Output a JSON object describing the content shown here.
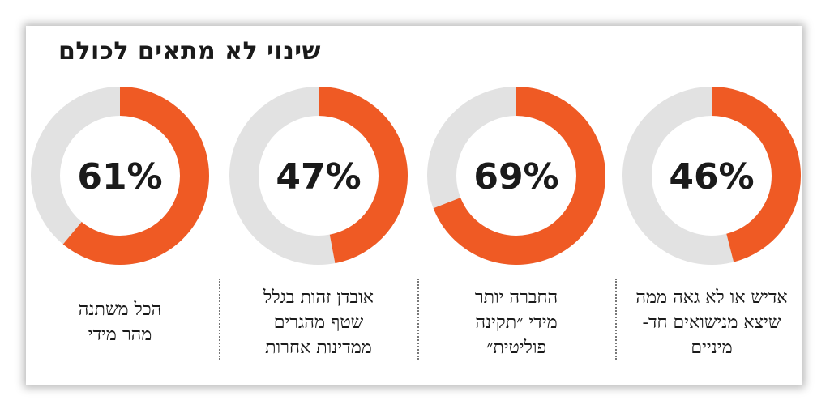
{
  "title": "שינוי לא מתאים לכולם",
  "colors": {
    "accent": "#ef5a24",
    "track": "#e2e2e2",
    "text": "#1a1a1a"
  },
  "chart_data": {
    "type": "pie",
    "title": "שינוי לא מתאים לכולם",
    "unit": "%",
    "items": [
      {
        "value": 61,
        "label": "61%",
        "caption": "הכל משתנה\nמהר מידי"
      },
      {
        "value": 47,
        "label": "47%",
        "caption": "אובדן זהות בגלל\nשטף מהגרים\nממדינות אחרות"
      },
      {
        "value": 69,
        "label": "69%",
        "caption": "החברה יותר\nמידי ״תקינה\nפוליטית״"
      },
      {
        "value": 46,
        "label": "46%",
        "caption": "אדיש או לא גאה ממה\nשיצא מנישואים חד-\nמיניים"
      }
    ]
  }
}
